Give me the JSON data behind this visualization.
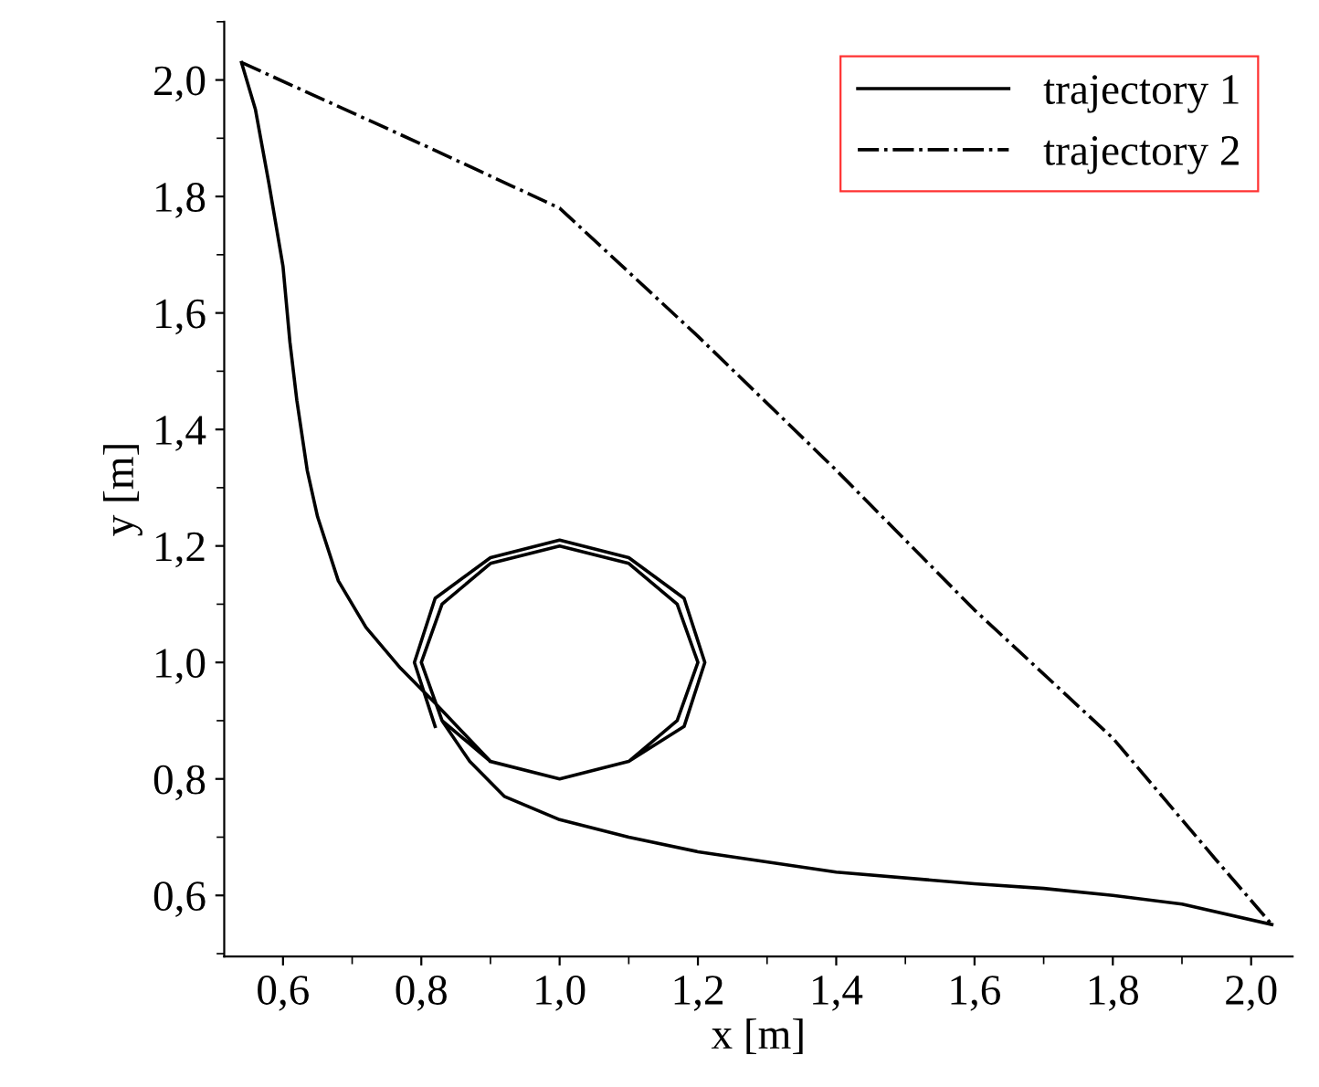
{
  "chart_data": {
    "type": "line",
    "xlabel": "x [m]",
    "ylabel": "y [m]",
    "xlim": [
      0.515,
      2.06
    ],
    "ylim": [
      0.495,
      2.1
    ],
    "xticks": [
      {
        "value": 0.6,
        "label": "0,6"
      },
      {
        "value": 0.8,
        "label": "0,8"
      },
      {
        "value": 1.0,
        "label": "1,0"
      },
      {
        "value": 1.2,
        "label": "1,2"
      },
      {
        "value": 1.4,
        "label": "1,4"
      },
      {
        "value": 1.6,
        "label": "1,6"
      },
      {
        "value": 1.8,
        "label": "1,8"
      },
      {
        "value": 2.0,
        "label": "2,0"
      }
    ],
    "yticks": [
      {
        "value": 0.6,
        "label": "0,6"
      },
      {
        "value": 0.8,
        "label": "0,8"
      },
      {
        "value": 1.0,
        "label": "1,0"
      },
      {
        "value": 1.2,
        "label": "1,2"
      },
      {
        "value": 1.4,
        "label": "1,4"
      },
      {
        "value": 1.6,
        "label": "1,6"
      },
      {
        "value": 1.8,
        "label": "1,8"
      },
      {
        "value": 2.0,
        "label": "2,0"
      }
    ],
    "grid": false,
    "legend": "top right",
    "marker": "none",
    "series": [
      {
        "name": "trajectory 1",
        "color": "#000000",
        "line_style": "solid",
        "x": [
          0.54,
          0.56,
          0.58,
          0.6,
          0.61,
          0.62,
          0.635,
          0.65,
          0.68,
          0.72,
          0.77,
          0.82,
          0.86,
          0.9,
          1.0,
          1.1,
          1.17,
          1.2,
          1.17,
          1.1,
          1.0,
          0.9,
          0.83,
          0.8,
          0.83,
          0.9,
          1.0,
          1.1,
          1.18,
          1.21,
          1.18,
          1.1,
          1.0,
          0.9,
          0.82,
          0.79,
          0.82,
          null,
          2.03,
          1.9,
          1.8,
          1.7,
          1.6,
          1.4,
          1.2,
          1.1,
          1.0,
          0.92,
          0.87,
          0.83,
          0.8,
          0.83,
          0.9,
          1.0,
          1.1,
          1.17,
          1.2,
          1.17,
          1.1,
          1.0,
          0.9
        ],
        "values": [
          2.03,
          1.95,
          1.82,
          1.68,
          1.55,
          1.45,
          1.33,
          1.25,
          1.14,
          1.06,
          0.99,
          0.93,
          0.88,
          0.83,
          0.8,
          0.83,
          0.9,
          1.0,
          1.1,
          1.17,
          1.2,
          1.17,
          1.1,
          1.0,
          0.9,
          0.83,
          0.8,
          0.83,
          0.89,
          1.0,
          1.11,
          1.18,
          1.21,
          1.18,
          1.11,
          1.0,
          0.89,
          null,
          0.55,
          0.585,
          0.6,
          0.612,
          0.62,
          0.64,
          0.675,
          0.7,
          0.73,
          0.77,
          0.83,
          0.9,
          1.0,
          1.1,
          1.17,
          1.2,
          1.17,
          1.1,
          1.0,
          0.9,
          0.83,
          0.8,
          0.83
        ]
      },
      {
        "name": "trajectory 2",
        "color": "#000000",
        "line_style": "dashdot",
        "x": [
          0.54,
          0.8,
          1.0,
          1.2,
          1.4,
          1.6,
          1.8,
          1.95,
          2.03
        ],
        "values": [
          2.03,
          1.89,
          1.78,
          1.56,
          1.33,
          1.09,
          0.87,
          0.66,
          0.55
        ]
      }
    ]
  }
}
